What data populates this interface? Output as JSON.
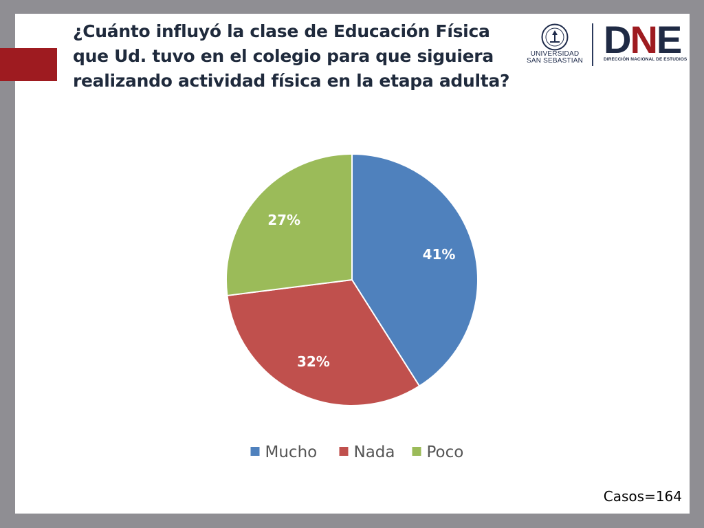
{
  "slide": {
    "title": "¿Cuánto influyó la clase de Educación Física que Ud. tuvo en el colegio para que siguiera realizando actividad física en la etapa adulta?",
    "cases_note": "Casos=164",
    "accent_color": "#9e1b20",
    "background_color": "#8f8e93"
  },
  "logos": {
    "university": {
      "line1": "UNIVERSIDAD",
      "line2": "SAN SEBASTIAN",
      "icon": "university-seal-icon"
    },
    "dne": {
      "mark_d": "D",
      "mark_n": "N",
      "mark_e": "E",
      "subtitle": "DIRECCIÓN NACIONAL DE ESTUDIOS"
    }
  },
  "chart_data": {
    "type": "pie",
    "title": "",
    "categories": [
      "Mucho",
      "Nada",
      "Poco"
    ],
    "values": [
      41,
      32,
      27
    ],
    "labels": [
      "41%",
      "32%",
      "27%"
    ],
    "colors": [
      "#4f81bd",
      "#c0504d",
      "#9bbb59"
    ],
    "start_angle_deg": 0,
    "direction": "clockwise",
    "legend_position": "bottom",
    "label_colors": [
      "#ffffff",
      "#ffffff",
      "#ffffff"
    ]
  }
}
